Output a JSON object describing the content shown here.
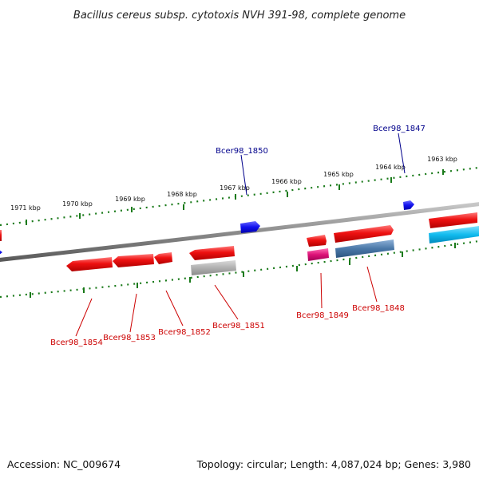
{
  "title": "Bacillus cereus subsp. cytotoxis NVH 391-98, complete genome",
  "footer": {
    "accession": "Accession: NC_009674",
    "summary": "Topology: circular; Length: 4,087,024 bp; Genes: 3,980"
  },
  "scale_labels": [
    "1971 kbp",
    "1970 kbp",
    "1969 kbp",
    "1968 kbp",
    "1967 kbp",
    "1966 kbp",
    "1965 kbp",
    "1964 kbp",
    "1963 kbp"
  ],
  "gene_labels": {
    "bcer98_1847": "Bcer98_1847",
    "bcer98_1848": "Bcer98_1848",
    "bcer98_1849": "Bcer98_1849",
    "bcer98_1850": "Bcer98_1850",
    "bcer98_1851": "Bcer98_1851",
    "bcer98_1852": "Bcer98_1852",
    "bcer98_1853": "Bcer98_1853",
    "bcer98_1854": "Bcer98_1854"
  },
  "colors": {
    "backbone": "#8c8c8c",
    "scale_ticks": "#1a7a1a",
    "forward_label": "#00008b",
    "reverse_label": "#cc0000",
    "red_gene": "#ee1111",
    "blue_gene": "#1111ee",
    "gray_gene": "#b0b0b0",
    "steel_gene": "#4a78a8",
    "magenta_gene": "#dd1177",
    "cyan_gene": "#11bbee"
  }
}
